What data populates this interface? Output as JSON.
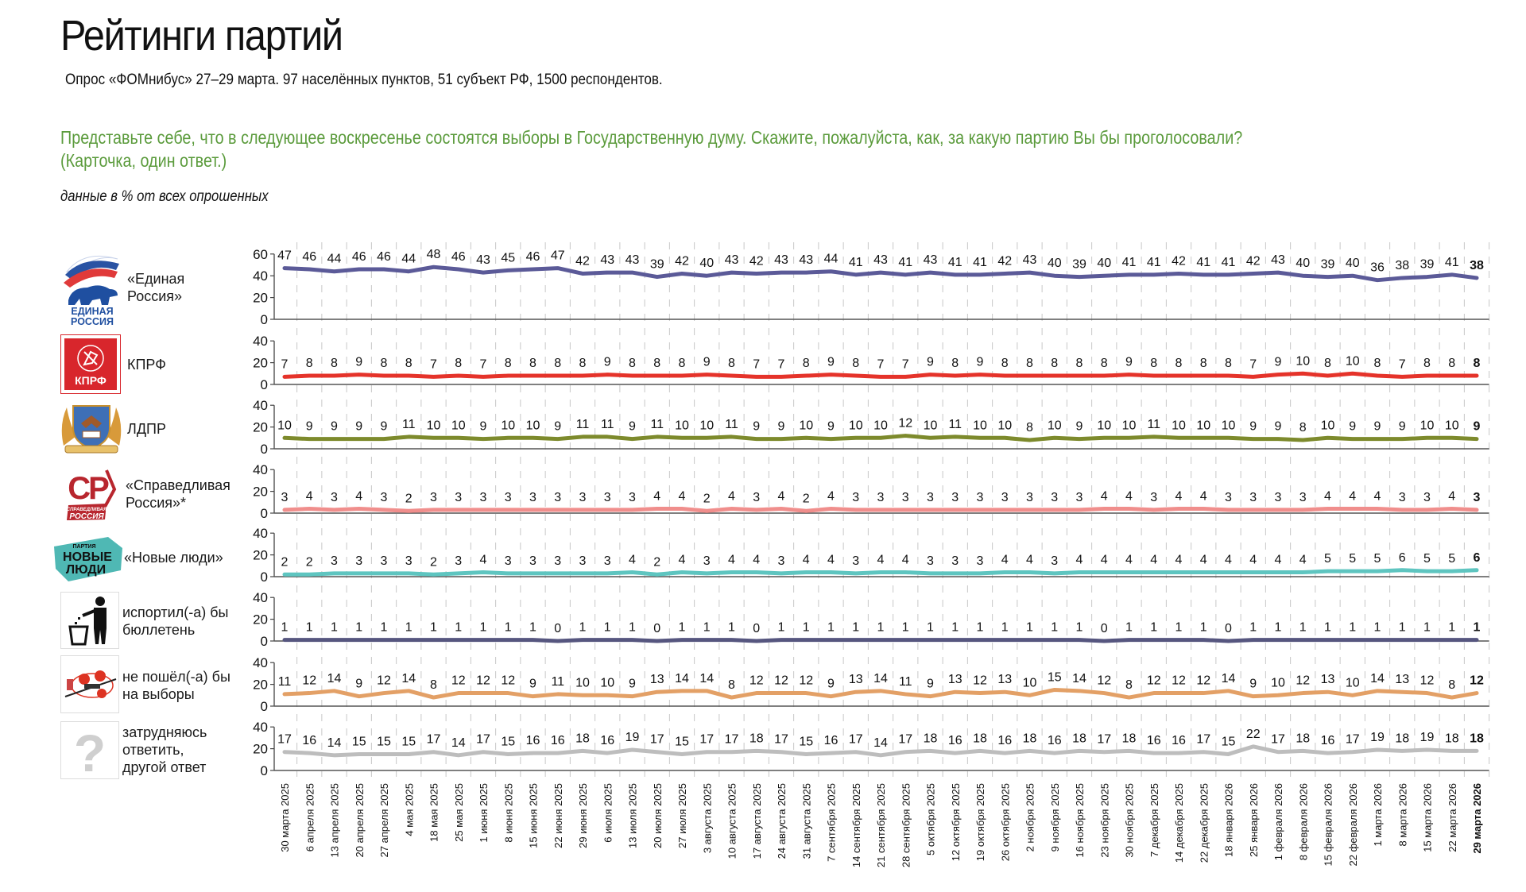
{
  "header": {
    "title": "Рейтинги партий",
    "subtitle": "Опрос «ФОМнибус» 27–29 марта. 97 населённых пунктов, 51 субъект РФ, 1500 респондентов."
  },
  "question": {
    "text": "Представьте себе, что в следующее воскресенье состоятся выборы в Государственную думу. Скажите, пожалуйста, как, за какую партию Вы бы проголосовали?",
    "note": "(Карточка, один ответ.)"
  },
  "units_note": "данные в % от всех опрошенных",
  "logos": {
    "er": [
      "ЕДИНАЯ",
      "РОССИЯ"
    ],
    "kprf": "КПРФ",
    "sr_letters": "СР",
    "sr": [
      "СПРАВЕДЛИВАЯ",
      "РОССИЯ"
    ],
    "nl": [
      "ПАРТИЯ",
      "НОВЫЕ",
      "ЛЮДИ"
    ],
    "hard": "?"
  },
  "chart_data": {
    "type": "line",
    "title": "Рейтинги партий",
    "xlabel": "",
    "ylabel": "%",
    "grid": true,
    "categories": [
      "30 марта 2025",
      "6 апреля 2025",
      "13 апреля 2025",
      "20 апреля 2025",
      "27 апреля 2025",
      "4 мая 2025",
      "18 мая 2025",
      "25 мая 2025",
      "1 июня 2025",
      "8 июня 2025",
      "15 июня 2025",
      "22 июня 2025",
      "29 июня 2025",
      "6 июля 2025",
      "13 июля 2025",
      "20 июля 2025",
      "27 июля 2025",
      "3 августа 2025",
      "10 августа 2025",
      "17 августа 2025",
      "24 августа 2025",
      "31 августа 2025",
      "7 сентября 2025",
      "14 сентября 2025",
      "21 сентября 2025",
      "28 сентября 2025",
      "5 октября 2025",
      "12 октября 2025",
      "19 октября 2025",
      "26 октября 2025",
      "2 ноября 2025",
      "9 ноября 2025",
      "16 ноября 2025",
      "23 ноября 2025",
      "30 ноября 2025",
      "7 декабря 2025",
      "14 декабря 2025",
      "22 декабря 2025",
      "18 января 2026",
      "25 января 2026",
      "1 февраля 2026",
      "8 февраля 2026",
      "15 февраля 2026",
      "22 февраля 2026",
      "1 марта 2026",
      "8 марта 2026",
      "15 марта 2026",
      "22 марта 2026",
      "29 марта 2026"
    ],
    "series": [
      {
        "name": "«Единая\nРоссия»",
        "color": "#5b5a98",
        "ylim": [
          0,
          60
        ],
        "yticks": [
          "0",
          "20",
          "40",
          "60"
        ],
        "values": [
          47,
          46,
          44,
          46,
          46,
          44,
          48,
          46,
          43,
          45,
          46,
          47,
          42,
          43,
          43,
          39,
          42,
          40,
          43,
          42,
          43,
          43,
          44,
          41,
          43,
          41,
          43,
          41,
          41,
          42,
          43,
          40,
          39,
          40,
          41,
          41,
          42,
          41,
          41,
          42,
          43,
          40,
          39,
          40,
          36,
          38,
          39,
          41,
          38
        ]
      },
      {
        "name": "КПРФ",
        "color": "#e5332a",
        "ylim": [
          0,
          40
        ],
        "yticks": [
          "0",
          "20",
          "40"
        ],
        "values": [
          7,
          8,
          8,
          9,
          8,
          8,
          7,
          8,
          7,
          8,
          8,
          8,
          8,
          9,
          8,
          8,
          8,
          9,
          8,
          7,
          7,
          8,
          9,
          8,
          7,
          7,
          9,
          8,
          9,
          8,
          8,
          8,
          8,
          8,
          9,
          8,
          8,
          8,
          8,
          7,
          9,
          10,
          8,
          10,
          8,
          7,
          8,
          8,
          8
        ]
      },
      {
        "name": "ЛДПР",
        "color": "#7d8a2c",
        "ylim": [
          0,
          40
        ],
        "yticks": [
          "0",
          "20",
          "40"
        ],
        "values": [
          10,
          9,
          9,
          9,
          9,
          11,
          10,
          10,
          9,
          10,
          10,
          9,
          11,
          11,
          9,
          11,
          10,
          10,
          11,
          9,
          9,
          10,
          9,
          10,
          10,
          12,
          10,
          11,
          10,
          10,
          8,
          10,
          9,
          10,
          10,
          11,
          10,
          10,
          10,
          9,
          9,
          8,
          10,
          9,
          9,
          9,
          10,
          10,
          9
        ]
      },
      {
        "name": "«Справедливая\nРоссия»*",
        "color": "#f08e8c",
        "ylim": [
          0,
          40
        ],
        "yticks": [
          "0",
          "20",
          "40"
        ],
        "values": [
          3,
          4,
          3,
          4,
          3,
          2,
          3,
          3,
          3,
          3,
          3,
          3,
          3,
          3,
          3,
          4,
          4,
          2,
          4,
          3,
          4,
          2,
          4,
          3,
          3,
          3,
          3,
          3,
          3,
          3,
          3,
          3,
          3,
          4,
          4,
          3,
          4,
          4,
          3,
          3,
          3,
          3,
          4,
          4,
          4,
          3,
          3,
          4,
          3
        ]
      },
      {
        "name": "«Новые люди»",
        "color": "#5ec5c0",
        "ylim": [
          0,
          40
        ],
        "yticks": [
          "0",
          "20",
          "40"
        ],
        "values": [
          2,
          2,
          3,
          3,
          3,
          3,
          2,
          3,
          4,
          3,
          3,
          3,
          3,
          3,
          4,
          2,
          4,
          3,
          4,
          4,
          3,
          4,
          4,
          3,
          4,
          4,
          3,
          3,
          3,
          4,
          4,
          3,
          4,
          4,
          4,
          4,
          4,
          4,
          4,
          4,
          4,
          4,
          5,
          5,
          5,
          6,
          5,
          5,
          6
        ]
      },
      {
        "name": "испортил(-а) бы\nбюллетень",
        "color": "#56567f",
        "ylim": [
          0,
          40
        ],
        "yticks": [
          "0",
          "20",
          "40"
        ],
        "values": [
          1,
          1,
          1,
          1,
          1,
          1,
          1,
          1,
          1,
          1,
          1,
          0,
          1,
          1,
          1,
          0,
          1,
          1,
          1,
          0,
          1,
          1,
          1,
          1,
          1,
          1,
          1,
          1,
          1,
          1,
          1,
          1,
          1,
          0,
          1,
          1,
          1,
          1,
          0,
          1,
          1,
          1,
          1,
          1,
          1,
          1,
          1,
          1,
          1
        ]
      },
      {
        "name": "не пошёл(-а) бы\nна выборы",
        "color": "#e3a066",
        "ylim": [
          0,
          40
        ],
        "yticks": [
          "0",
          "20",
          "40"
        ],
        "values": [
          11,
          12,
          14,
          9,
          12,
          14,
          8,
          12,
          12,
          12,
          9,
          11,
          10,
          10,
          9,
          13,
          14,
          14,
          8,
          12,
          12,
          12,
          9,
          13,
          14,
          11,
          9,
          13,
          12,
          13,
          10,
          15,
          14,
          12,
          8,
          12,
          12,
          12,
          14,
          9,
          10,
          12,
          13,
          10,
          14,
          13,
          12,
          8,
          12
        ]
      },
      {
        "name": "затрудняюсь\nответить,\nдругой ответ",
        "color": "#bdbdbd",
        "ylim": [
          0,
          40
        ],
        "yticks": [
          "0",
          "20",
          "40"
        ],
        "values": [
          17,
          16,
          14,
          15,
          15,
          15,
          17,
          14,
          17,
          15,
          16,
          16,
          18,
          16,
          19,
          17,
          15,
          17,
          17,
          18,
          17,
          15,
          16,
          17,
          14,
          17,
          18,
          16,
          18,
          16,
          18,
          16,
          18,
          17,
          18,
          16,
          16,
          17,
          15,
          22,
          17,
          18,
          16,
          17,
          19,
          18,
          19,
          18,
          18
        ]
      }
    ]
  }
}
